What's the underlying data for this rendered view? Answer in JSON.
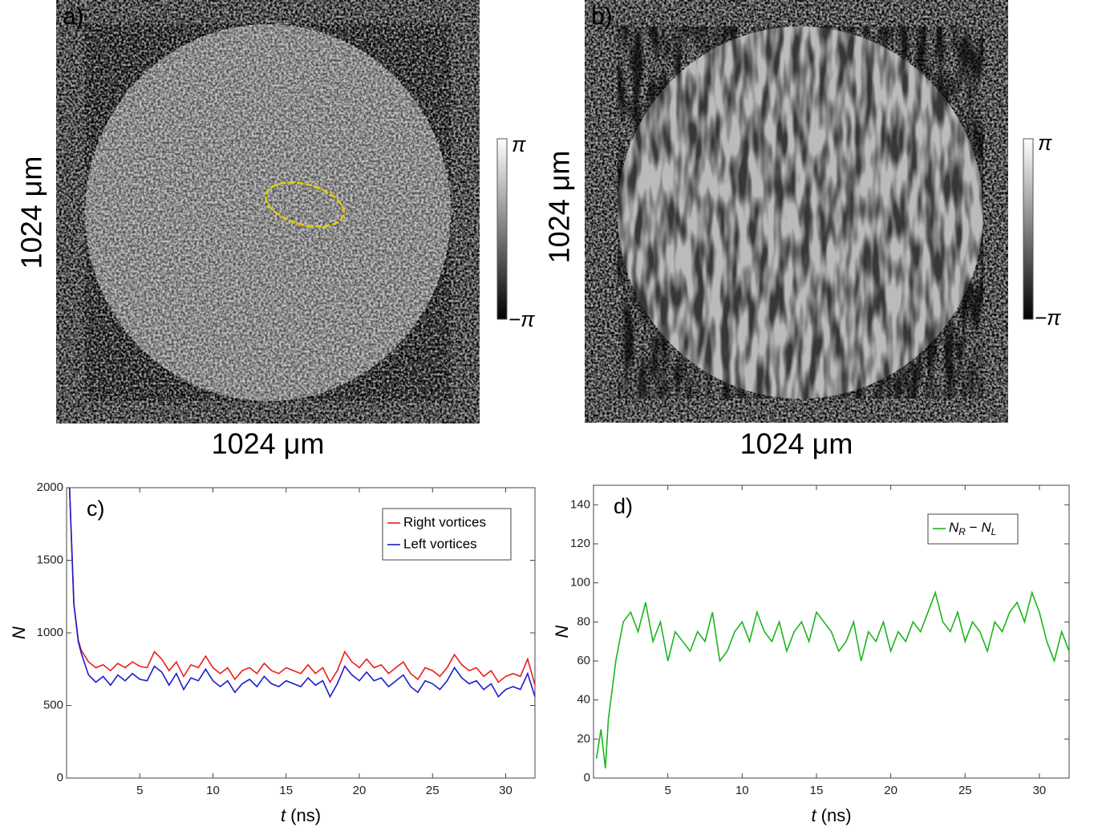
{
  "image_panels": [
    {
      "label": "a)",
      "x_label": "1024 μm",
      "y_label": "1024 μm",
      "colorbar_max": "π",
      "colorbar_min": "−π"
    },
    {
      "label": "b)",
      "x_label": "1024 μm",
      "y_label": "1024 μm",
      "colorbar_max": "π",
      "colorbar_min": "−π"
    }
  ],
  "chart_data": [
    {
      "type": "line",
      "annotation": "c)",
      "x_label": "t (ns)",
      "y_label": "N",
      "xlim": [
        0,
        32
      ],
      "ylim": [
        0,
        2000
      ],
      "xticks": [
        5,
        10,
        15,
        20,
        25,
        30
      ],
      "yticks": [
        0,
        500,
        1000,
        1500,
        2000
      ],
      "legend": "top-right",
      "x": [
        0.2,
        0.5,
        0.8,
        1,
        1.5,
        2,
        2.5,
        3,
        3.5,
        4,
        4.5,
        5,
        5.5,
        6,
        6.5,
        7,
        7.5,
        8,
        8.5,
        9,
        9.5,
        10,
        10.5,
        11,
        11.5,
        12,
        12.5,
        13,
        13.5,
        14,
        14.5,
        15,
        15.5,
        16,
        16.5,
        17,
        17.5,
        18,
        18.5,
        19,
        19.5,
        20,
        20.5,
        21,
        21.5,
        22,
        22.5,
        23,
        23.5,
        24,
        24.5,
        25,
        25.5,
        26,
        26.5,
        27,
        27.5,
        28,
        28.5,
        29,
        29.5,
        30,
        30.5,
        31,
        31.5,
        32
      ],
      "series": [
        {
          "name": "Right vortices",
          "color": "#ee1c1c",
          "values": [
            2000,
            1200,
            950,
            880,
            800,
            760,
            780,
            740,
            790,
            760,
            800,
            770,
            760,
            870,
            820,
            740,
            800,
            700,
            780,
            760,
            840,
            760,
            720,
            760,
            680,
            740,
            760,
            720,
            790,
            740,
            720,
            760,
            740,
            720,
            780,
            720,
            760,
            660,
            740,
            870,
            800,
            760,
            820,
            760,
            780,
            720,
            760,
            800,
            720,
            680,
            760,
            740,
            700,
            760,
            850,
            780,
            740,
            760,
            700,
            740,
            660,
            700,
            720,
            700,
            820,
            640
          ]
        },
        {
          "name": "Left vortices",
          "color": "#1c1ccc",
          "values": [
            2000,
            1200,
            940,
            860,
            710,
            660,
            700,
            640,
            710,
            670,
            720,
            680,
            670,
            770,
            730,
            640,
            720,
            610,
            690,
            670,
            750,
            670,
            630,
            670,
            590,
            650,
            680,
            630,
            700,
            650,
            630,
            670,
            650,
            630,
            690,
            640,
            670,
            560,
            650,
            770,
            710,
            670,
            730,
            670,
            690,
            630,
            670,
            710,
            630,
            590,
            670,
            650,
            610,
            670,
            760,
            690,
            650,
            670,
            610,
            650,
            560,
            610,
            630,
            610,
            720,
            560
          ]
        }
      ]
    },
    {
      "type": "line",
      "annotation": "d)",
      "x_label": "t (ns)",
      "y_label": "N",
      "xlim": [
        0,
        32
      ],
      "ylim": [
        0,
        150
      ],
      "xticks": [
        5,
        10,
        15,
        20,
        25,
        30
      ],
      "yticks": [
        0,
        20,
        40,
        60,
        80,
        100,
        120,
        140
      ],
      "legend": "top-right",
      "x": [
        0.2,
        0.5,
        0.8,
        1,
        1.5,
        2,
        2.5,
        3,
        3.5,
        4,
        4.5,
        5,
        5.5,
        6,
        6.5,
        7,
        7.5,
        8,
        8.5,
        9,
        9.5,
        10,
        10.5,
        11,
        11.5,
        12,
        12.5,
        13,
        13.5,
        14,
        14.5,
        15,
        15.5,
        16,
        16.5,
        17,
        17.5,
        18,
        18.5,
        19,
        19.5,
        20,
        20.5,
        21,
        21.5,
        22,
        22.5,
        23,
        23.5,
        24,
        24.5,
        25,
        25.5,
        26,
        26.5,
        27,
        27.5,
        28,
        28.5,
        29,
        29.5,
        30,
        30.5,
        31,
        31.5,
        32
      ],
      "series": [
        {
          "name": "NR − NL",
          "color": "#1db51d",
          "values": [
            10,
            25,
            5,
            30,
            60,
            80,
            85,
            75,
            90,
            70,
            80,
            60,
            75,
            70,
            65,
            75,
            70,
            85,
            60,
            65,
            75,
            80,
            70,
            85,
            75,
            70,
            80,
            65,
            75,
            80,
            70,
            85,
            80,
            75,
            65,
            70,
            80,
            60,
            75,
            70,
            80,
            65,
            75,
            70,
            80,
            75,
            85,
            95,
            80,
            75,
            85,
            70,
            80,
            75,
            65,
            80,
            75,
            85,
            90,
            80,
            95,
            85,
            70,
            60,
            75,
            65
          ]
        }
      ]
    }
  ]
}
